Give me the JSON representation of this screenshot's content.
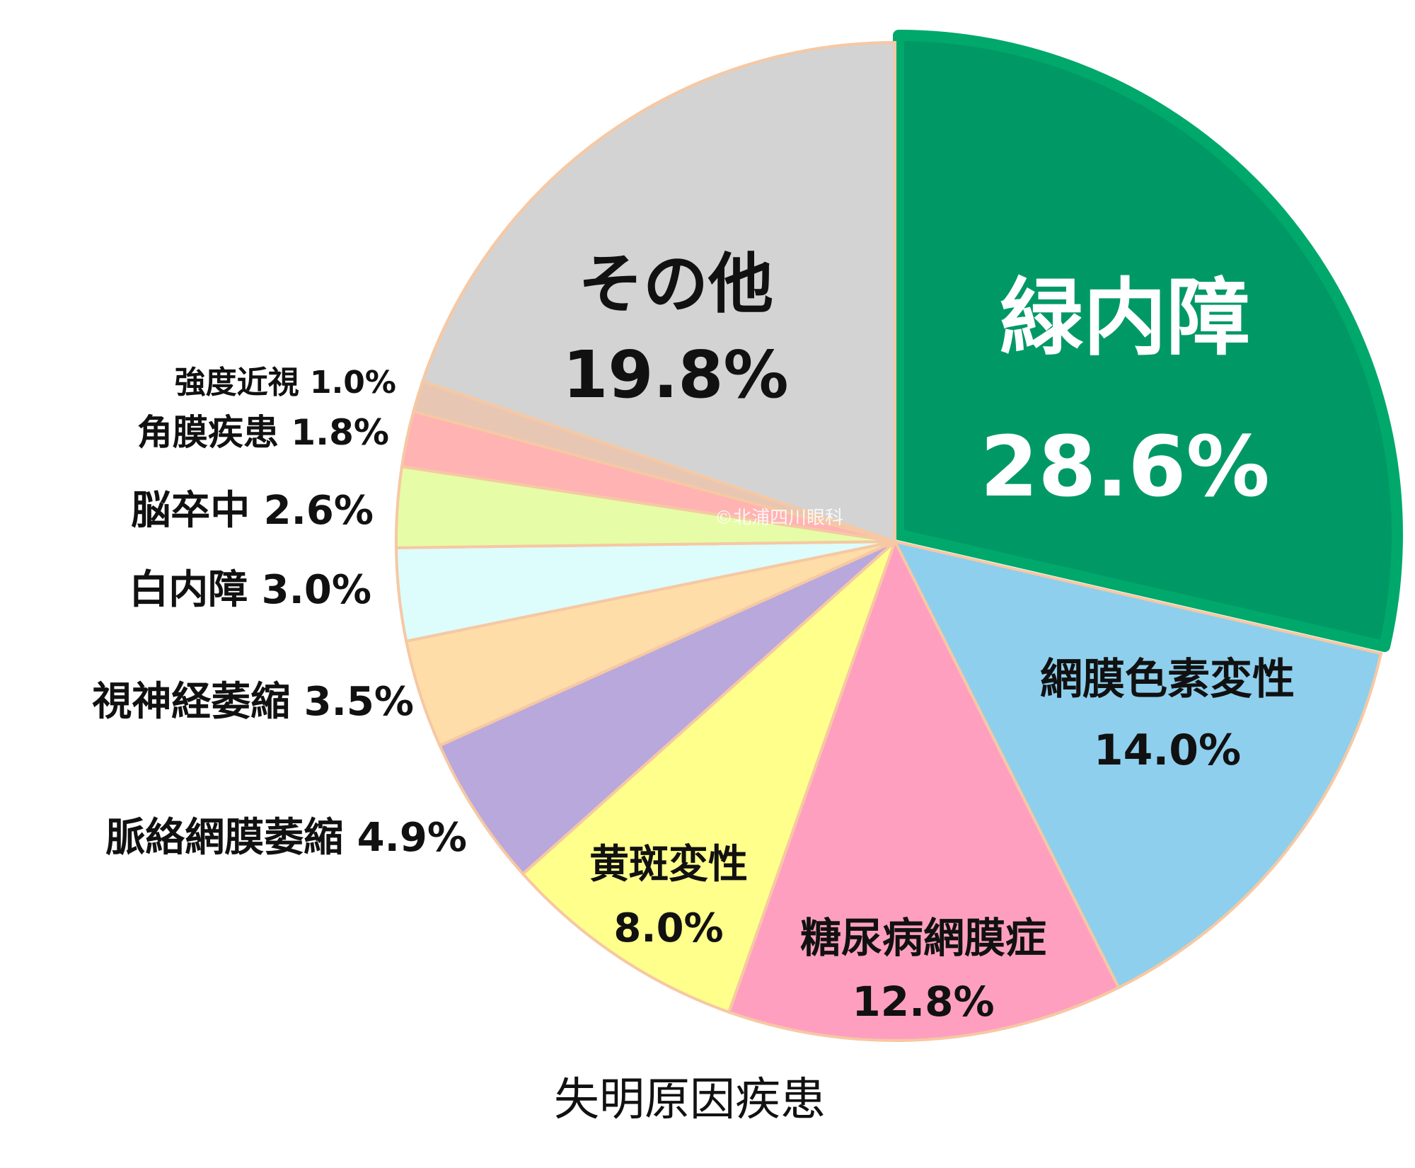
{
  "chart_data": {
    "type": "pie",
    "title": "",
    "caption": "失明原因疾患",
    "watermark": "©北浦四川眼科",
    "slices": [
      {
        "label": "緑内障",
        "value": 28.6,
        "color": "#009966",
        "exploded": true
      },
      {
        "label": "網膜色素変性",
        "value": 14.0,
        "color": "#8ecfed"
      },
      {
        "label": "糖尿病網膜症",
        "value": 12.8,
        "color": "#ff9fc0"
      },
      {
        "label": "黄斑変性",
        "value": 8.0,
        "color": "#ffff8c"
      },
      {
        "label": "脈絡網膜萎縮",
        "value": 4.9,
        "color": "#b8a8dc"
      },
      {
        "label": "視神経萎縮",
        "value": 3.5,
        "color": "#ffdda8"
      },
      {
        "label": "白内障",
        "value": 3.0,
        "color": "#ddfcfc"
      },
      {
        "label": "脳卒中",
        "value": 2.6,
        "color": "#e6fca6"
      },
      {
        "label": "角膜疾患",
        "value": 1.8,
        "color": "#ffb3b3"
      },
      {
        "label": "強度近視",
        "value": 1.0,
        "color": "#e8c6b4"
      },
      {
        "label": "その他",
        "value": 19.8,
        "color": "#d3d3d3"
      }
    ]
  }
}
